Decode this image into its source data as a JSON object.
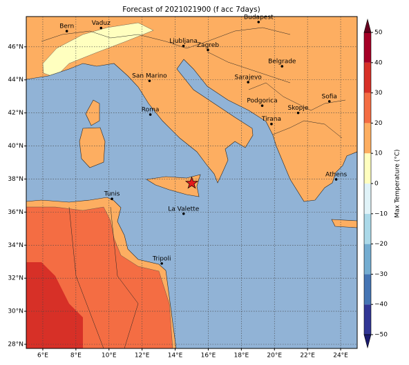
{
  "map": {
    "title": "Forecast of 2021021900 (f acc 7days)",
    "xlim": [
      5,
      25
    ],
    "ylim": [
      27.75,
      47.83
    ],
    "xticks": [
      {
        "value": 6,
        "label": "6°E"
      },
      {
        "value": 8,
        "label": "8°E"
      },
      {
        "value": 10,
        "label": "10°E"
      },
      {
        "value": 12,
        "label": "12°E"
      },
      {
        "value": 14,
        "label": "14°E"
      },
      {
        "value": 16,
        "label": "16°E"
      },
      {
        "value": 18,
        "label": "18°E"
      },
      {
        "value": 20,
        "label": "20°E"
      },
      {
        "value": 22,
        "label": "22°E"
      },
      {
        "value": 24,
        "label": "24°E"
      }
    ],
    "yticks": [
      {
        "value": 28,
        "label": "28°N"
      },
      {
        "value": 30,
        "label": "30°N"
      },
      {
        "value": 32,
        "label": "32°N"
      },
      {
        "value": 34,
        "label": "34°N"
      },
      {
        "value": 36,
        "label": "36°N"
      },
      {
        "value": 38,
        "label": "38°N"
      },
      {
        "value": 40,
        "label": "40°N"
      },
      {
        "value": 42,
        "label": "42°N"
      },
      {
        "value": 44,
        "label": "44°N"
      },
      {
        "value": 46,
        "label": "46°N"
      }
    ],
    "grid": true,
    "cities": [
      {
        "name": "Bern",
        "lon": 7.45,
        "lat": 46.95
      },
      {
        "name": "Vaduz",
        "lon": 9.52,
        "lat": 47.14
      },
      {
        "name": "Budapest",
        "lon": 19.04,
        "lat": 47.5
      },
      {
        "name": "Ljubljana",
        "lon": 14.5,
        "lat": 46.05
      },
      {
        "name": "Zagreb",
        "lon": 15.98,
        "lat": 45.81
      },
      {
        "name": "San Marino",
        "lon": 12.45,
        "lat": 43.94
      },
      {
        "name": "Belgrade",
        "lon": 20.46,
        "lat": 44.82
      },
      {
        "name": "Sarajevo",
        "lon": 18.41,
        "lat": 43.86
      },
      {
        "name": "Sofia",
        "lon": 23.32,
        "lat": 42.7
      },
      {
        "name": "Podgorica",
        "lon": 19.26,
        "lat": 42.44
      },
      {
        "name": "Skopje",
        "lon": 21.43,
        "lat": 42.0
      },
      {
        "name": "Roma",
        "lon": 12.5,
        "lat": 41.9
      },
      {
        "name": "Tirana",
        "lon": 19.82,
        "lat": 41.33
      },
      {
        "name": "Athens",
        "lon": 23.73,
        "lat": 37.98
      },
      {
        "name": "Tunis",
        "lon": 10.18,
        "lat": 36.8
      },
      {
        "name": "La Valette",
        "lon": 14.51,
        "lat": 35.9
      },
      {
        "name": "Tripoli",
        "lon": 13.19,
        "lat": 32.89
      }
    ],
    "marker": {
      "lon": 15.0,
      "lat": 37.75,
      "color": "#e41a1c"
    },
    "colorbar": {
      "label": "Max Temperature (°C)",
      "ticks": [
        {
          "value": 50,
          "label": "50"
        },
        {
          "value": 40,
          "label": "40"
        },
        {
          "value": 30,
          "label": "30"
        },
        {
          "value": 20,
          "label": "20"
        },
        {
          "value": 10,
          "label": "10"
        },
        {
          "value": 0,
          "label": "0"
        },
        {
          "value": -10,
          "label": "−10"
        },
        {
          "value": -20,
          "label": "−20"
        },
        {
          "value": -30,
          "label": "−30"
        },
        {
          "value": -40,
          "label": "−40"
        },
        {
          "value": -50,
          "label": "−50"
        }
      ],
      "colors": [
        "#313695",
        "#4575b4",
        "#74add1",
        "#abd9e9",
        "#e0f3f8",
        "#ffffbf",
        "#fdae61",
        "#f46d43",
        "#d73027",
        "#a50026"
      ],
      "under": "#1a1a6e",
      "over": "#67001f"
    }
  }
}
